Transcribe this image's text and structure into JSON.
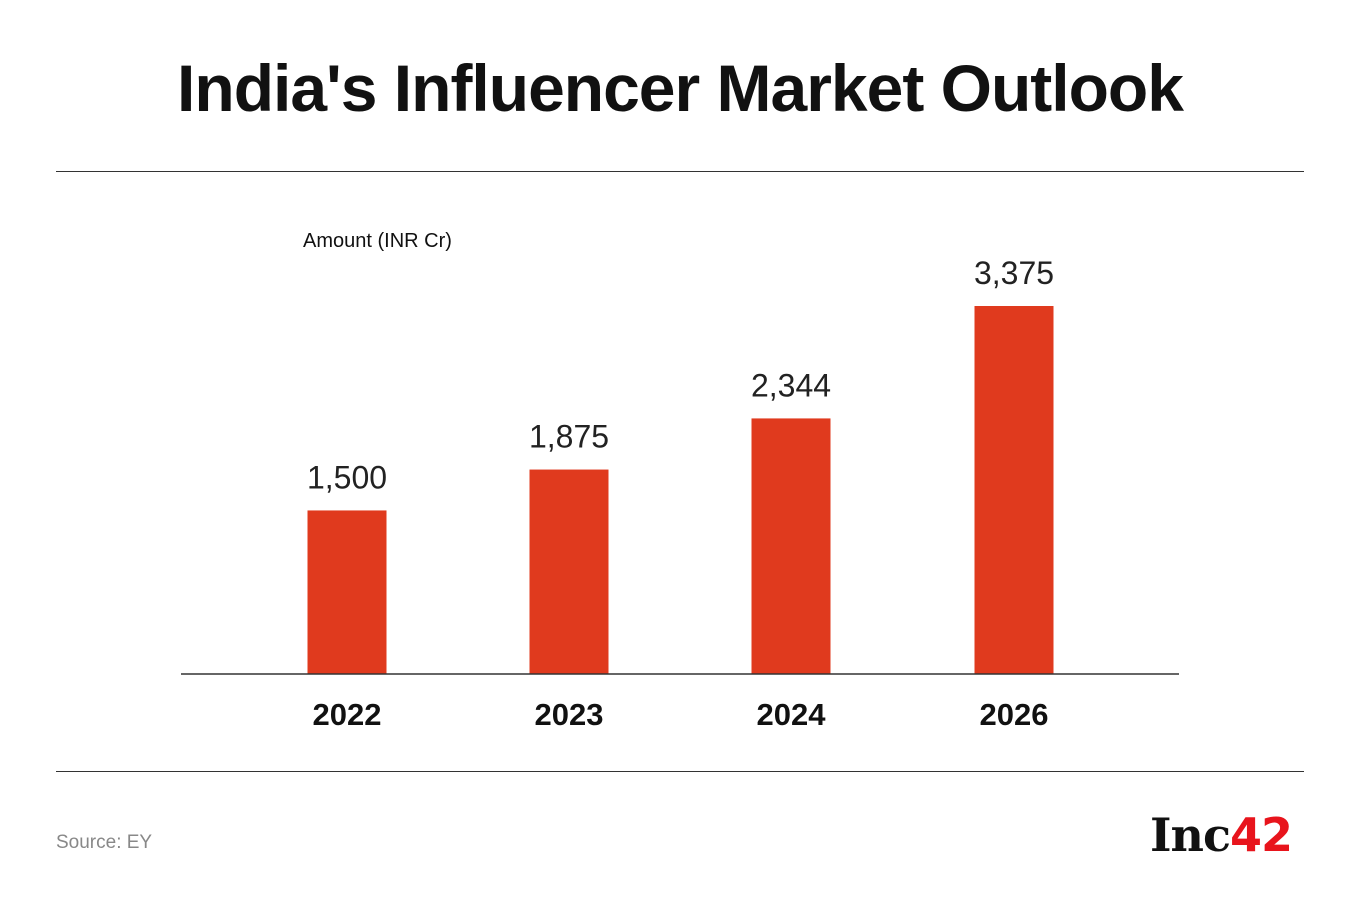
{
  "chart_data": {
    "type": "bar",
    "title": "India's Influencer Market Outlook",
    "ylabel": "Amount (INR Cr)",
    "xlabel": "",
    "categories": [
      "2022",
      "2023",
      "2024",
      "2026"
    ],
    "values": [
      1500,
      1875,
      2344,
      3375
    ],
    "value_labels": [
      "1,500",
      "1,875",
      "2,344",
      "3,375"
    ],
    "ylim": [
      0,
      3375
    ],
    "grid": false,
    "bar_color": "#E03A1E"
  },
  "footer": {
    "source": "Source: EY",
    "logo_text": "Inc",
    "logo_accent": "42"
  }
}
